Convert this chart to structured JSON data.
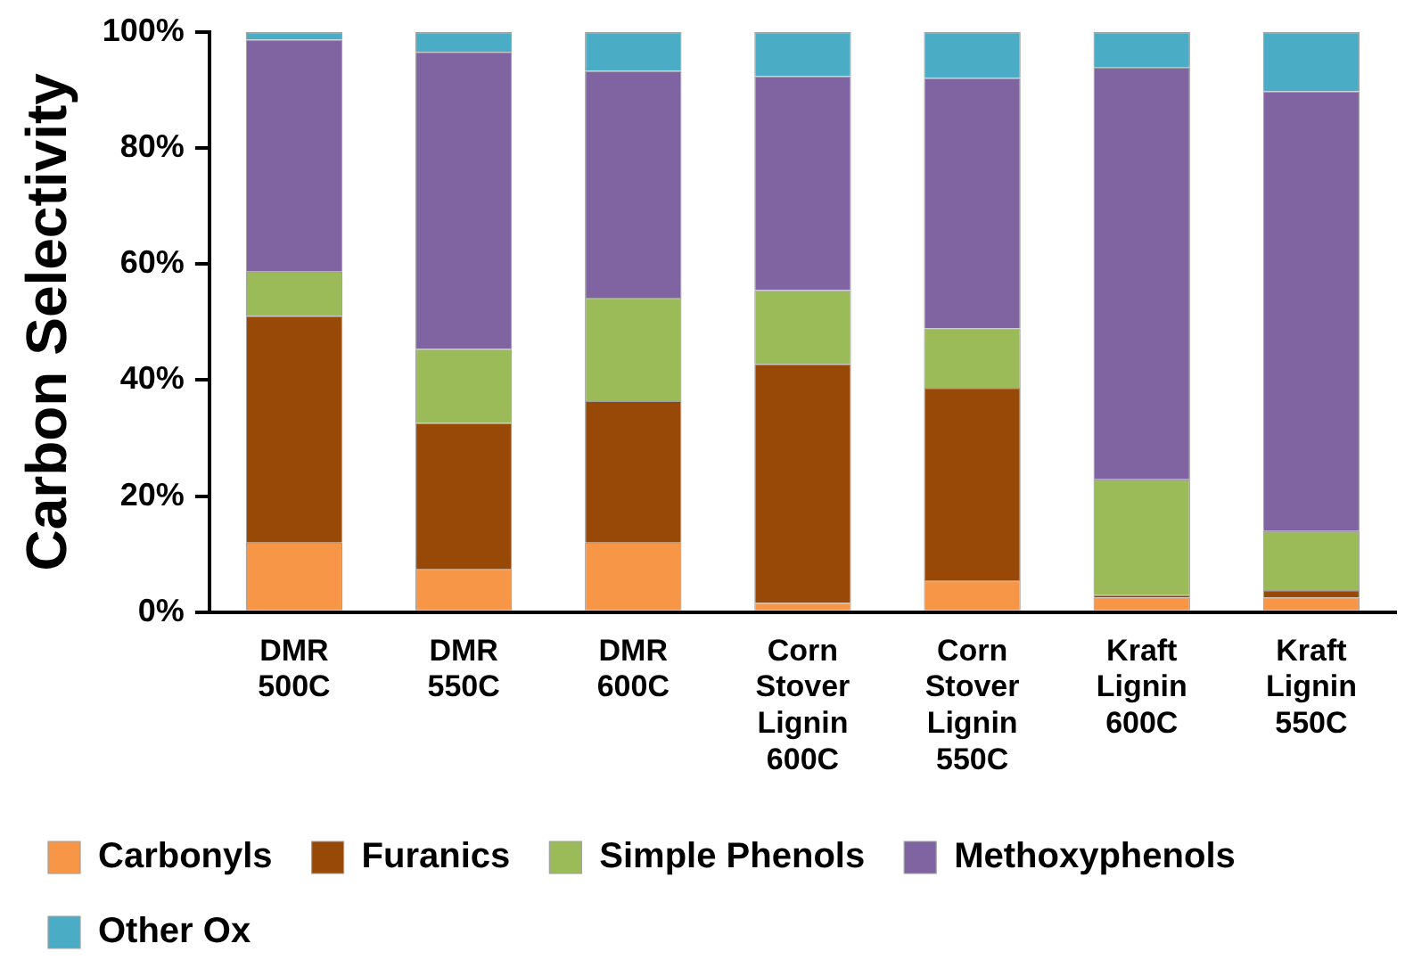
{
  "chart_data": {
    "type": "bar",
    "stacked": true,
    "ylabel": "Carbon Selectivity",
    "categories": [
      "DMR 500C",
      "DMR 550C",
      "DMR 600C",
      "Corn Stover Lignin 600C",
      "Corn Stover Lignin 550C",
      "Kraft Lignin 600C",
      "Kraft Lignin 550C"
    ],
    "series": [
      {
        "name": "Carbonyls",
        "color": "#f79646",
        "values": [
          12.0,
          7.4,
          12.0,
          1.6,
          5.5,
          2.5,
          2.5
        ]
      },
      {
        "name": "Furanics",
        "color": "#984807",
        "values": [
          39.1,
          25.2,
          24.4,
          41.2,
          33.2,
          0.5,
          1.3
        ]
      },
      {
        "name": "Simple Phenols",
        "color": "#9bbb59",
        "values": [
          7.6,
          12.8,
          17.8,
          12.7,
          10.2,
          19.9,
          10.2
        ]
      },
      {
        "name": "Methoxyphenols",
        "color": "#8064a2",
        "values": [
          40.0,
          51.2,
          39.1,
          36.9,
          43.2,
          71.0,
          75.8
        ]
      },
      {
        "name": "Other Ox",
        "color": "#4bacc6",
        "values": [
          1.3,
          3.4,
          6.7,
          7.6,
          7.9,
          6.1,
          10.2
        ]
      }
    ],
    "ylim": [
      0,
      100
    ],
    "yticks": [
      {
        "value": 0,
        "label": "0%"
      },
      {
        "value": 20,
        "label": "20%"
      },
      {
        "value": 40,
        "label": "40%"
      },
      {
        "value": 60,
        "label": "60%"
      },
      {
        "value": 80,
        "label": "80%"
      },
      {
        "value": 100,
        "label": "100%"
      }
    ],
    "grid": false,
    "legend": "bottom"
  }
}
